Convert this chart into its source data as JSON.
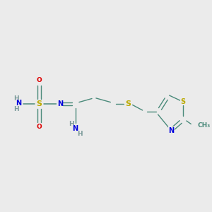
{
  "bg_color": "#ebebeb",
  "atom_colors": {
    "C": "#4a8a7a",
    "N": "#0000dd",
    "O": "#dd0000",
    "S": "#bbaa00",
    "H": "#7a9a9a"
  },
  "bond_color": "#4a8a7a",
  "font_size": 6.5,
  "figsize": [
    3.0,
    3.0
  ],
  "dpi": 100
}
